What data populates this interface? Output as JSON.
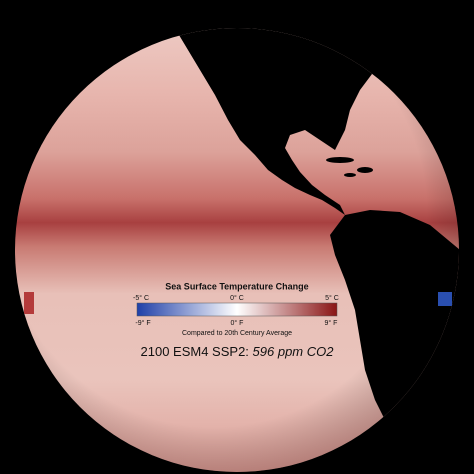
{
  "legend": {
    "title": "Sea Surface Temperature Change",
    "celsius": [
      "-5° C",
      "0° C",
      "5° C"
    ],
    "fahrenheit": [
      "-9° F",
      "0° F",
      "9° F"
    ],
    "note": "Compared to 20th Century Average"
  },
  "caption": {
    "text": "2100 ESM4 SSP2:",
    "emphasis": "596 ppm CO2"
  }
}
